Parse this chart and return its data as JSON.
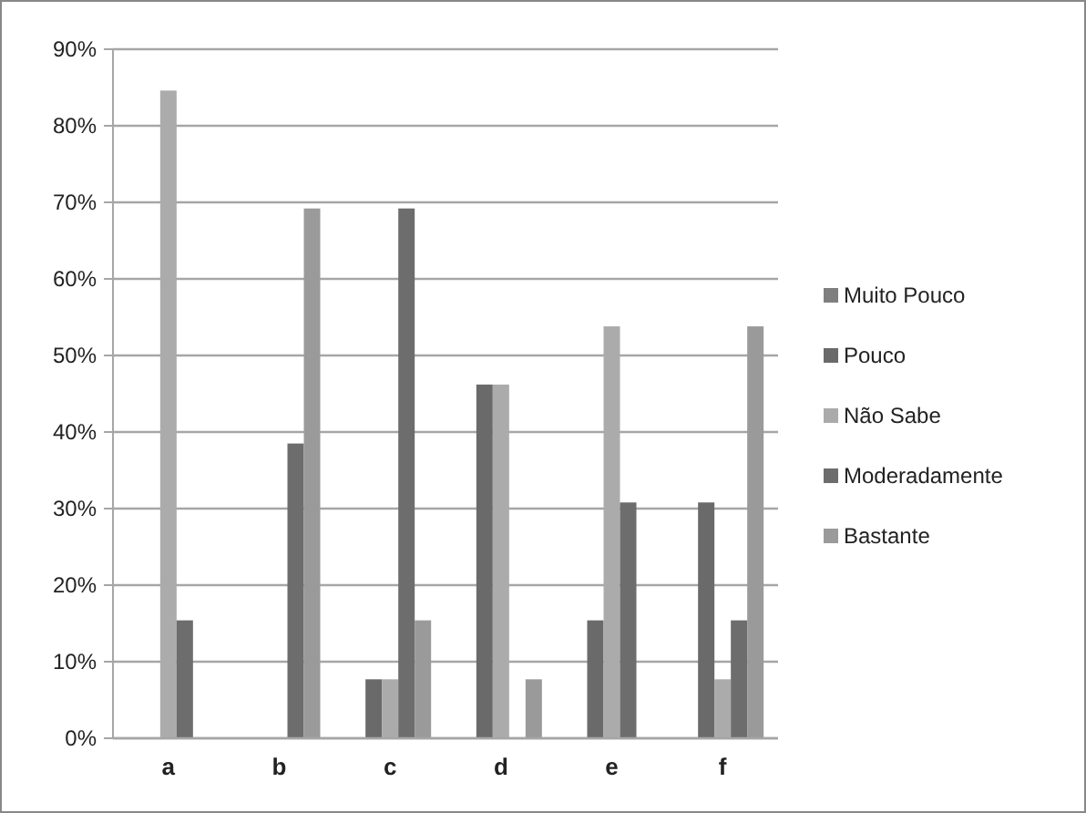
{
  "chart_data": {
    "type": "bar",
    "categories": [
      "a",
      "b",
      "c",
      "d",
      "e",
      "f"
    ],
    "series": [
      {
        "name": "Muito Pouco",
        "color": "#7f7f7f",
        "values": [
          0,
          0,
          0,
          0,
          0,
          0
        ]
      },
      {
        "name": "Pouco",
        "color": "#6a6a6a",
        "values": [
          0,
          0,
          7.7,
          46.2,
          15.4,
          30.8
        ]
      },
      {
        "name": "Não Sabe",
        "color": "#ababab",
        "values": [
          84.6,
          0,
          7.7,
          46.2,
          53.8,
          7.7
        ]
      },
      {
        "name": "Moderadamente",
        "color": "#6d6d6d",
        "values": [
          15.4,
          38.5,
          69.2,
          0,
          30.8,
          15.4
        ]
      },
      {
        "name": "Bastante",
        "color": "#9a9a9a",
        "values": [
          0,
          69.2,
          15.4,
          7.7,
          0,
          53.8
        ]
      }
    ],
    "ylim": [
      0,
      90
    ],
    "yticks": [
      {
        "value": 0,
        "label": "0%"
      },
      {
        "value": 10,
        "label": "10%"
      },
      {
        "value": 20,
        "label": "20%"
      },
      {
        "value": 30,
        "label": "30%"
      },
      {
        "value": 40,
        "label": "40%"
      },
      {
        "value": 50,
        "label": "50%"
      },
      {
        "value": 60,
        "label": "60%"
      },
      {
        "value": 70,
        "label": "70%"
      },
      {
        "value": 80,
        "label": "80%"
      },
      {
        "value": 90,
        "label": "90%"
      }
    ],
    "grid": "y",
    "legend": "right"
  }
}
